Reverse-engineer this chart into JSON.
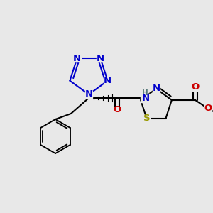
{
  "bg_color": "#e8e8e8",
  "colors": {
    "C": "#000000",
    "N": "#0000cc",
    "O": "#cc0000",
    "S": "#999900",
    "H": "#666666",
    "bond": "#000000"
  },
  "lw": 1.5,
  "dbo": 3.5,
  "fs": 9.5,
  "fs_small": 7.5
}
